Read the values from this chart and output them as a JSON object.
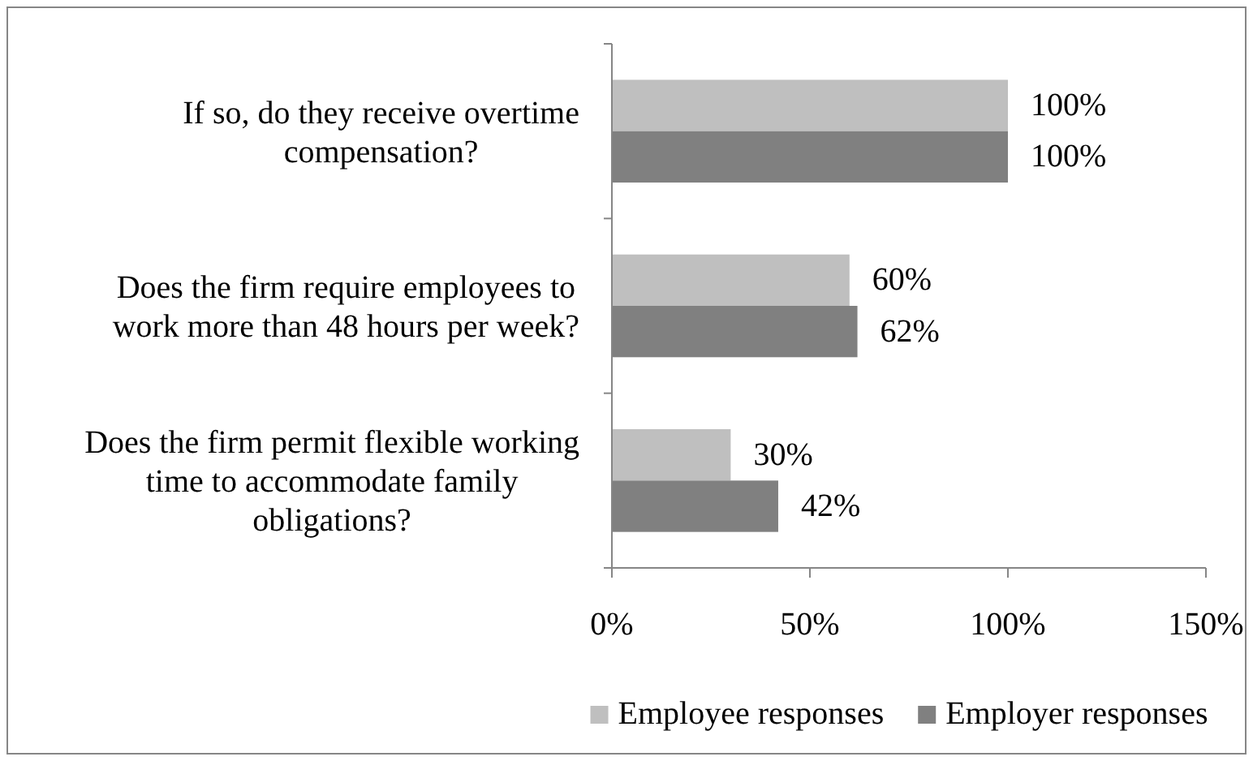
{
  "chart_data": {
    "type": "bar",
    "orientation": "horizontal",
    "categories": [
      "If so, do they receive overtime compensation?",
      "Does the firm require employees to work more than 48 hours per week?",
      "Does the firm permit flexible working time to accommodate family obligations?"
    ],
    "series": [
      {
        "name": "Employee responses",
        "color": "#bfbfbf",
        "values": [
          100,
          60,
          30
        ],
        "value_labels": [
          "100%",
          "60%",
          "30%"
        ]
      },
      {
        "name": "Employer responses",
        "color": "#808080",
        "values": [
          100,
          62,
          42
        ],
        "value_labels": [
          "100%",
          "62%",
          "42%"
        ]
      }
    ],
    "xlim": [
      0,
      150
    ],
    "xticks": [
      {
        "value": 0,
        "label": "0%"
      },
      {
        "value": 50,
        "label": "50%"
      },
      {
        "value": 100,
        "label": "100%"
      },
      {
        "value": 150,
        "label": "150%"
      }
    ],
    "legend": "bottom"
  }
}
